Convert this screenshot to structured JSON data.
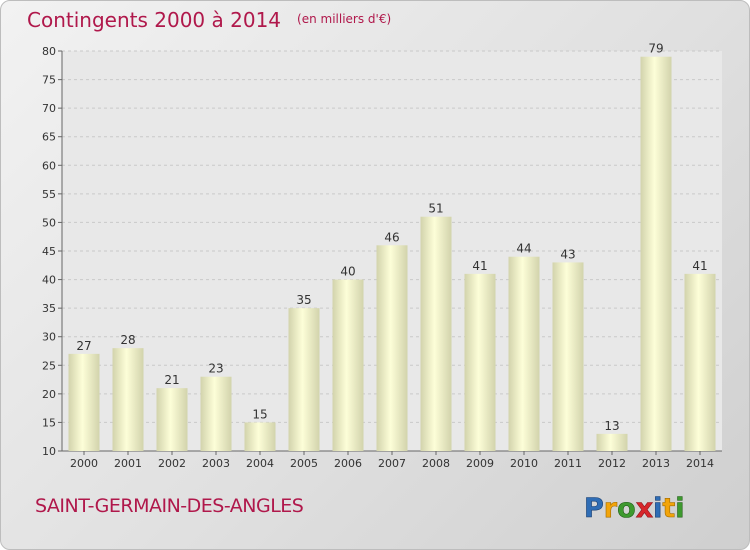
{
  "header": {
    "title": "Contingents 2000 à 2014",
    "unit": "(en milliers d'€)"
  },
  "footer": {
    "commune": "SAINT-GERMAIN-DES-ANGLES",
    "logo_text": "Proxiti"
  },
  "colors": {
    "title": "#b0184b",
    "bar_light": "#fdfed8",
    "bar_dark": "#d2d3ac"
  },
  "chart_data": {
    "type": "bar",
    "title": "Contingents 2000 à 2014",
    "subtitle": "(en milliers d'€)",
    "categories": [
      "2000",
      "2001",
      "2002",
      "2003",
      "2004",
      "2005",
      "2006",
      "2007",
      "2008",
      "2009",
      "2010",
      "2011",
      "2012",
      "2013",
      "2014"
    ],
    "values": [
      27,
      28,
      21,
      23,
      15,
      35,
      40,
      46,
      51,
      41,
      44,
      43,
      13,
      79,
      41
    ],
    "ylim": [
      10,
      80
    ],
    "yticks": [
      10,
      15,
      20,
      25,
      30,
      35,
      40,
      45,
      50,
      55,
      60,
      65,
      70,
      75,
      80
    ],
    "grid": true,
    "data_labels": true
  }
}
